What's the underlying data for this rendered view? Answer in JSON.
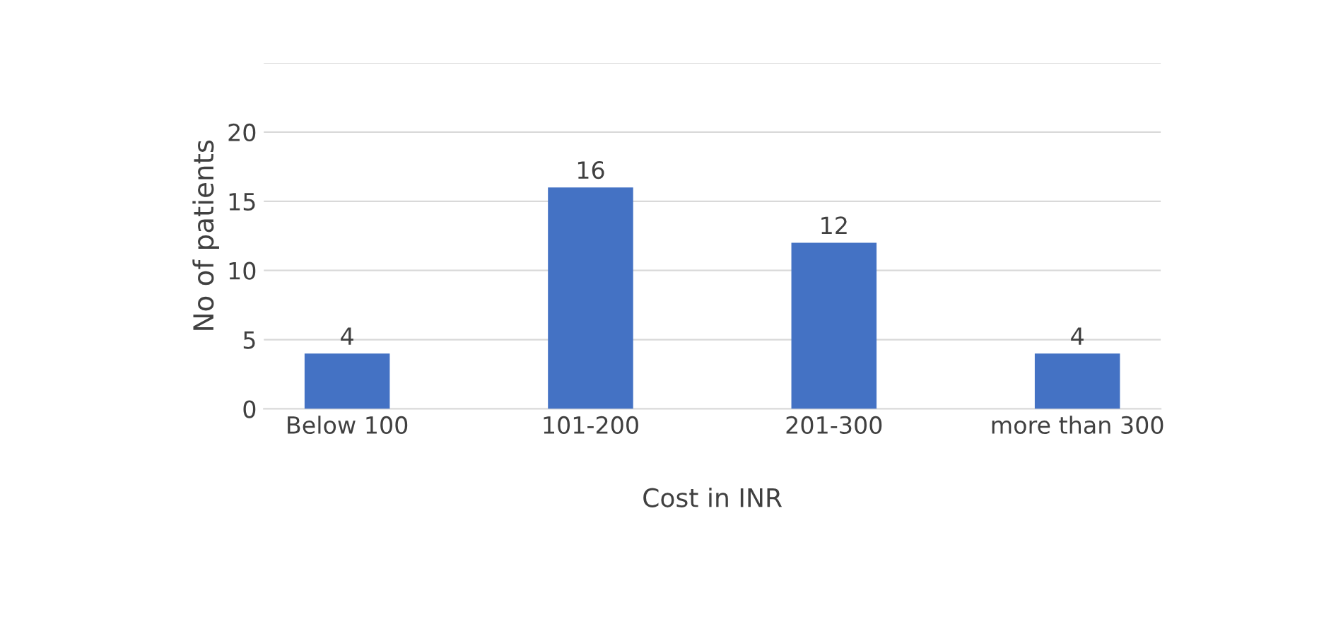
{
  "chart_data": {
    "type": "bar",
    "xlabel": "Cost in INR",
    "ylabel": "No of patients",
    "categories": [
      "Below 100",
      "101-200",
      "201-300",
      "more than 300"
    ],
    "values": [
      4,
      16,
      12,
      4
    ],
    "color": "#4472c4",
    "ylim": [
      0,
      25
    ],
    "yticks": [
      0,
      5,
      10,
      15,
      20,
      {
        "value": 25,
        "label": null
      }
    ],
    "grid": "y",
    "data_labels": true
  }
}
